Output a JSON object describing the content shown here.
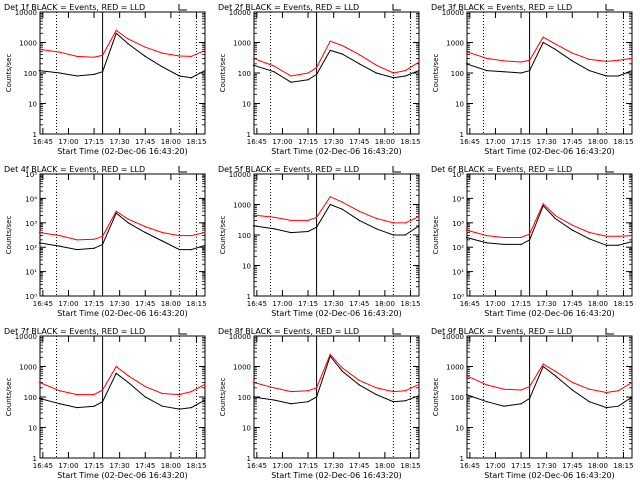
{
  "figure": {
    "x_ticks": [
      "16:45",
      "17:00",
      "17:15",
      "17:30",
      "17:45",
      "18:00",
      "18:15"
    ],
    "x_start_label": "Start Time (02-Dec-06 16:43:20)",
    "ylabel": "Counts/sec",
    "legend_text": "BLACK = Events, RED = LLD"
  },
  "chart_data": [
    {
      "type": "line",
      "title": "Det 1f BLACK = Events, RED = LLD",
      "xlabel": "Start Time (02-Dec-06 16:43:20)",
      "ylabel": "Counts/sec",
      "log_y": true,
      "ylim": [
        1,
        10000
      ],
      "xlim": [
        "16:43:20",
        "18:20"
      ],
      "y_tick_labels": [
        "1",
        "10",
        "100",
        "1000",
        "10000"
      ],
      "vlines_dotted": [
        "16:53",
        "18:05",
        "18:15"
      ],
      "vlines_solid": [
        "17:20"
      ],
      "series": [
        {
          "name": "Events",
          "color": "#000000",
          "x": [
            "16:43",
            "16:55",
            "17:05",
            "17:15",
            "17:20",
            "17:28",
            "17:35",
            "17:45",
            "17:55",
            "18:05",
            "18:12",
            "18:20"
          ],
          "y": [
            120,
            100,
            80,
            90,
            110,
            2000,
            900,
            350,
            160,
            80,
            70,
            120
          ]
        },
        {
          "name": "LLD",
          "color": "#ff0000",
          "x": [
            "16:43",
            "16:55",
            "17:05",
            "17:15",
            "17:20",
            "17:28",
            "17:35",
            "17:45",
            "17:55",
            "18:05",
            "18:12",
            "18:20"
          ],
          "y": [
            600,
            480,
            350,
            330,
            380,
            2500,
            1300,
            700,
            450,
            360,
            350,
            550
          ]
        }
      ]
    },
    {
      "type": "line",
      "title": "Det 2f BLACK = Events, RED = LLD",
      "xlabel": "Start Time (02-Dec-06 16:43:20)",
      "ylabel": "Counts/sec",
      "log_y": true,
      "ylim": [
        1,
        10000
      ],
      "xlim": [
        "16:43:20",
        "18:20"
      ],
      "y_tick_labels": [
        "1",
        "10",
        "100",
        "1000",
        "10000"
      ],
      "vlines_dotted": [
        "16:53",
        "18:05",
        "18:15"
      ],
      "vlines_solid": [
        "17:20"
      ],
      "series": [
        {
          "name": "Events",
          "color": "#000000",
          "x": [
            "16:43",
            "16:55",
            "17:05",
            "17:15",
            "17:20",
            "17:28",
            "17:35",
            "17:45",
            "17:55",
            "18:05",
            "18:12",
            "18:20"
          ],
          "y": [
            180,
            110,
            50,
            60,
            90,
            550,
            420,
            200,
            100,
            70,
            80,
            120
          ]
        },
        {
          "name": "LLD",
          "color": "#ff0000",
          "x": [
            "16:43",
            "16:55",
            "17:05",
            "17:15",
            "17:20",
            "17:28",
            "17:35",
            "17:45",
            "17:55",
            "18:05",
            "18:12",
            "18:20"
          ],
          "y": [
            300,
            170,
            80,
            100,
            150,
            1100,
            800,
            400,
            180,
            100,
            120,
            230
          ]
        }
      ]
    },
    {
      "type": "line",
      "title": "Det 3f BLACK = Events, RED = LLD",
      "xlabel": "Start Time (02-Dec-06 16:43:20)",
      "ylabel": "Counts/sec",
      "log_y": true,
      "ylim": [
        1,
        10000
      ],
      "xlim": [
        "16:43:20",
        "18:20"
      ],
      "y_tick_labels": [
        "1",
        "10",
        "100",
        "1000",
        "10000"
      ],
      "vlines_dotted": [
        "16:53",
        "18:05",
        "18:15"
      ],
      "vlines_solid": [
        "17:20"
      ],
      "series": [
        {
          "name": "Events",
          "color": "#000000",
          "x": [
            "16:43",
            "16:55",
            "17:05",
            "17:15",
            "17:20",
            "17:28",
            "17:35",
            "17:45",
            "17:55",
            "18:05",
            "18:12",
            "18:20"
          ],
          "y": [
            200,
            120,
            110,
            100,
            120,
            1000,
            600,
            250,
            120,
            80,
            80,
            120
          ]
        },
        {
          "name": "LLD",
          "color": "#ff0000",
          "x": [
            "16:43",
            "16:55",
            "17:05",
            "17:15",
            "17:20",
            "17:28",
            "17:35",
            "17:45",
            "17:55",
            "18:05",
            "18:12",
            "18:20"
          ],
          "y": [
            500,
            300,
            250,
            230,
            260,
            1500,
            900,
            450,
            280,
            240,
            260,
            300
          ]
        }
      ]
    },
    {
      "type": "line",
      "title": "Det 4f BLACK = Events, RED = LLD",
      "xlabel": "Start Time (02-Dec-06 16:43:20)",
      "ylabel": "Counts/sec",
      "log_y": true,
      "ylim": [
        1,
        100000
      ],
      "xlim": [
        "16:43:20",
        "18:20"
      ],
      "y_tick_labels": [
        "10⁰",
        "10¹",
        "10²",
        "10³",
        "10⁴",
        "10⁵"
      ],
      "vlines_dotted": [
        "16:53",
        "18:05",
        "18:15"
      ],
      "vlines_solid": [
        "17:20"
      ],
      "series": [
        {
          "name": "Events",
          "color": "#000000",
          "x": [
            "16:43",
            "16:55",
            "17:05",
            "17:15",
            "17:20",
            "17:28",
            "17:35",
            "17:45",
            "17:55",
            "18:05",
            "18:12",
            "18:20"
          ],
          "y": [
            150,
            110,
            80,
            90,
            130,
            2500,
            1000,
            400,
            180,
            80,
            80,
            120
          ]
        },
        {
          "name": "LLD",
          "color": "#ff0000",
          "x": [
            "16:43",
            "16:55",
            "17:05",
            "17:15",
            "17:20",
            "17:28",
            "17:35",
            "17:45",
            "17:55",
            "18:05",
            "18:12",
            "18:20"
          ],
          "y": [
            400,
            300,
            200,
            210,
            280,
            3000,
            1400,
            700,
            400,
            300,
            300,
            400
          ]
        }
      ]
    },
    {
      "type": "line",
      "title": "Det 5f BLACK = Events, RED = LLD",
      "xlabel": "Start Time (02-Dec-06 16:43:20)",
      "ylabel": "Counts/sec",
      "log_y": true,
      "ylim": [
        1,
        10000
      ],
      "xlim": [
        "16:43:20",
        "18:20"
      ],
      "y_tick_labels": [
        "1",
        "10",
        "100",
        "1000",
        "10000"
      ],
      "vlines_dotted": [
        "16:53",
        "18:05",
        "18:15"
      ],
      "vlines_solid": [
        "17:20"
      ],
      "series": [
        {
          "name": "Events",
          "color": "#000000",
          "x": [
            "16:43",
            "16:55",
            "17:05",
            "17:15",
            "17:20",
            "17:28",
            "17:35",
            "17:45",
            "17:55",
            "18:05",
            "18:12",
            "18:20"
          ],
          "y": [
            200,
            160,
            120,
            130,
            180,
            1000,
            700,
            300,
            160,
            100,
            100,
            200
          ]
        },
        {
          "name": "LLD",
          "color": "#ff0000",
          "x": [
            "16:43",
            "16:55",
            "17:05",
            "17:15",
            "17:20",
            "17:28",
            "17:35",
            "17:45",
            "17:55",
            "18:05",
            "18:12",
            "18:20"
          ],
          "y": [
            450,
            380,
            300,
            300,
            380,
            1800,
            1200,
            600,
            350,
            250,
            250,
            400
          ]
        }
      ]
    },
    {
      "type": "line",
      "title": "Det 6f BLACK = Events, RED = LLD",
      "xlabel": "Start Time (02-Dec-06 16:43:20)",
      "ylabel": "Counts/sec",
      "log_y": true,
      "ylim": [
        1,
        100000
      ],
      "xlim": [
        "16:43:20",
        "18:20"
      ],
      "y_tick_labels": [
        "10⁰",
        "10¹",
        "10²",
        "10³",
        "10⁴",
        "10⁵"
      ],
      "vlines_dotted": [
        "16:53",
        "18:05",
        "18:15"
      ],
      "vlines_solid": [
        "17:20"
      ],
      "series": [
        {
          "name": "Events",
          "color": "#000000",
          "x": [
            "16:43",
            "16:55",
            "17:05",
            "17:15",
            "17:20",
            "17:28",
            "17:35",
            "17:45",
            "17:55",
            "18:05",
            "18:12",
            "18:20"
          ],
          "y": [
            250,
            150,
            130,
            130,
            200,
            5000,
            1500,
            500,
            220,
            120,
            120,
            170
          ]
        },
        {
          "name": "LLD",
          "color": "#ff0000",
          "x": [
            "16:43",
            "16:55",
            "17:05",
            "17:15",
            "17:20",
            "17:28",
            "17:35",
            "17:45",
            "17:55",
            "18:05",
            "18:12",
            "18:20"
          ],
          "y": [
            500,
            300,
            250,
            250,
            350,
            6000,
            2000,
            800,
            400,
            280,
            280,
            300
          ]
        }
      ]
    },
    {
      "type": "line",
      "title": "Det 7f BLACK = Events, RED = LLD",
      "xlabel": "Start Time (02-Dec-06 16:43:20)",
      "ylabel": "Counts/sec",
      "log_y": true,
      "ylim": [
        1,
        10000
      ],
      "xlim": [
        "16:43:20",
        "18:20"
      ],
      "y_tick_labels": [
        "1",
        "10",
        "100",
        "1000",
        "10000"
      ],
      "vlines_dotted": [
        "16:53",
        "18:05",
        "18:15"
      ],
      "vlines_solid": [
        "17:20"
      ],
      "series": [
        {
          "name": "Events",
          "color": "#000000",
          "x": [
            "16:43",
            "16:55",
            "17:05",
            "17:15",
            "17:20",
            "17:28",
            "17:35",
            "17:45",
            "17:55",
            "18:05",
            "18:12",
            "18:20"
          ],
          "y": [
            90,
            60,
            45,
            50,
            70,
            600,
            300,
            100,
            50,
            40,
            45,
            80
          ]
        },
        {
          "name": "LLD",
          "color": "#ff0000",
          "x": [
            "16:43",
            "16:55",
            "17:05",
            "17:15",
            "17:20",
            "17:28",
            "17:35",
            "17:45",
            "17:55",
            "18:05",
            "18:12",
            "18:20"
          ],
          "y": [
            300,
            160,
            120,
            120,
            170,
            1000,
            500,
            220,
            130,
            120,
            150,
            260
          ]
        }
      ]
    },
    {
      "type": "line",
      "title": "Det 8f BLACK = Events, RED = LLD",
      "xlabel": "Start Time (02-Dec-06 16:43:20)",
      "ylabel": "Counts/sec",
      "log_y": true,
      "ylim": [
        1,
        10000
      ],
      "xlim": [
        "16:43:20",
        "18:20"
      ],
      "y_tick_labels": [
        "1",
        "10",
        "100",
        "1000",
        "10000"
      ],
      "vlines_dotted": [
        "16:53",
        "18:05",
        "18:15"
      ],
      "vlines_solid": [
        "17:20"
      ],
      "series": [
        {
          "name": "Events",
          "color": "#000000",
          "x": [
            "16:43",
            "16:55",
            "17:05",
            "17:15",
            "17:20",
            "17:28",
            "17:35",
            "17:45",
            "17:55",
            "18:05",
            "18:12",
            "18:20"
          ],
          "y": [
            100,
            80,
            60,
            70,
            100,
            2200,
            700,
            250,
            120,
            70,
            75,
            110
          ]
        },
        {
          "name": "LLD",
          "color": "#ff0000",
          "x": [
            "16:43",
            "16:55",
            "17:05",
            "17:15",
            "17:20",
            "17:28",
            "17:35",
            "17:45",
            "17:55",
            "18:05",
            "18:12",
            "18:20"
          ],
          "y": [
            300,
            200,
            150,
            160,
            200,
            2500,
            900,
            350,
            200,
            150,
            160,
            260
          ]
        }
      ]
    },
    {
      "type": "line",
      "title": "Det 9f BLACK = Events, RED = LLD",
      "xlabel": "Start Time (02-Dec-06 16:43:20)",
      "ylabel": "Counts/sec",
      "log_y": true,
      "ylim": [
        1,
        10000
      ],
      "xlim": [
        "16:43:20",
        "18:20"
      ],
      "y_tick_labels": [
        "1",
        "10",
        "100",
        "1000",
        "10000"
      ],
      "vlines_dotted": [
        "16:53",
        "18:05",
        "18:15"
      ],
      "vlines_solid": [
        "17:20"
      ],
      "series": [
        {
          "name": "Events",
          "color": "#000000",
          "x": [
            "16:43",
            "16:55",
            "17:05",
            "17:15",
            "17:20",
            "17:28",
            "17:35",
            "17:45",
            "17:55",
            "18:05",
            "18:12",
            "18:20"
          ],
          "y": [
            120,
            70,
            50,
            60,
            90,
            1000,
            500,
            170,
            70,
            45,
            50,
            100
          ]
        },
        {
          "name": "LLD",
          "color": "#ff0000",
          "x": [
            "16:43",
            "16:55",
            "17:05",
            "17:15",
            "17:20",
            "17:28",
            "17:35",
            "17:45",
            "17:55",
            "18:05",
            "18:12",
            "18:20"
          ],
          "y": [
            500,
            250,
            180,
            170,
            220,
            1200,
            700,
            300,
            180,
            140,
            160,
            300
          ]
        }
      ]
    }
  ]
}
